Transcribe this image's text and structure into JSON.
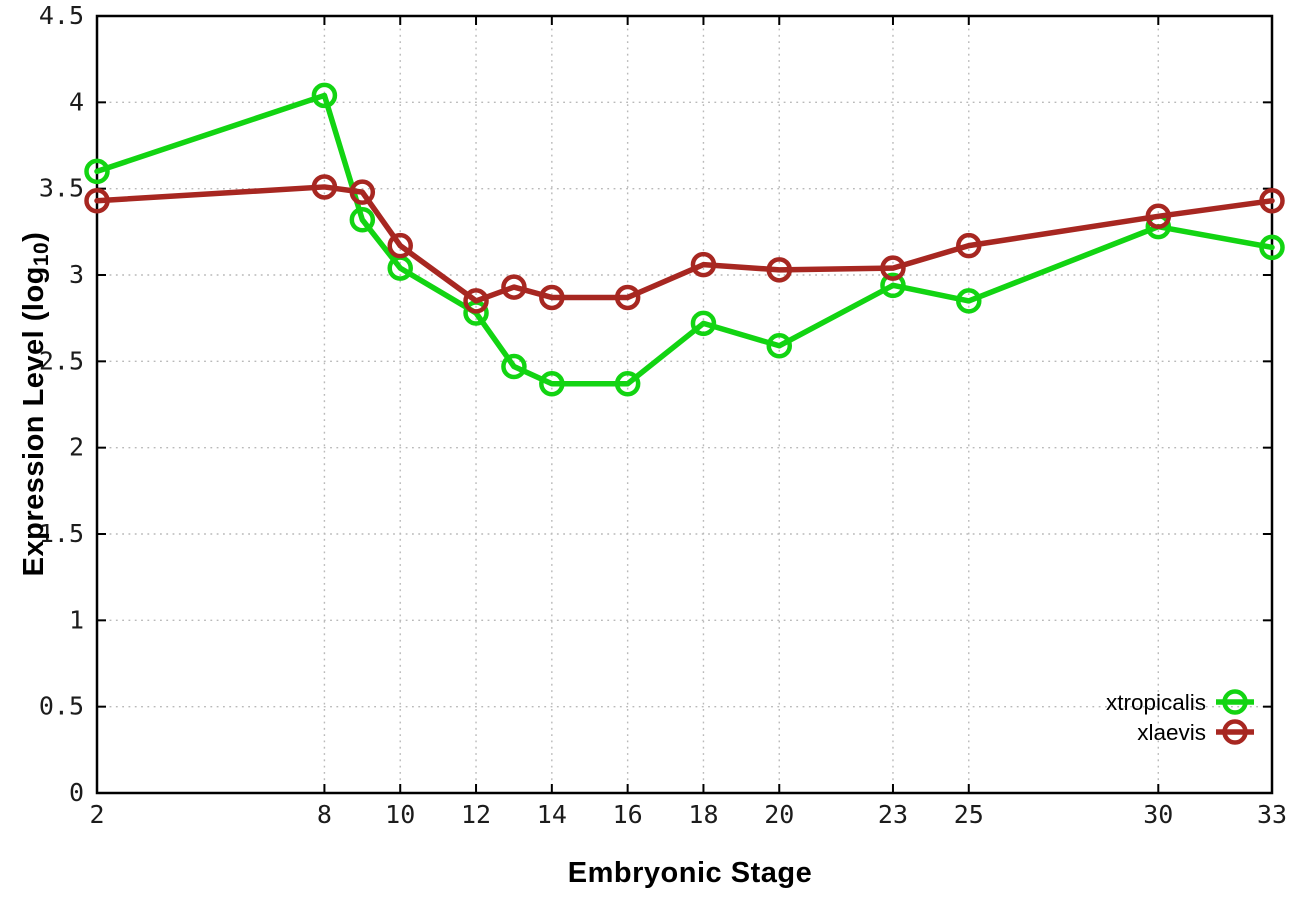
{
  "figure": {
    "background": "#ffffff",
    "x_axis_title": "Embryonic Stage",
    "y_axis_title": {
      "prefix": "Expression Level (log",
      "sub": "10",
      "suffix": ")"
    }
  },
  "chart_data": {
    "type": "line",
    "title": "",
    "xlabel": "Embryonic Stage",
    "ylabel": "Expression Level (log10)",
    "xlim": [
      2,
      33
    ],
    "ylim": [
      0,
      4.5
    ],
    "grid": true,
    "legend_position": "inside-lower-right",
    "x": [
      2,
      8,
      9,
      10,
      12,
      13,
      14,
      16,
      18,
      20,
      23,
      25,
      30,
      33
    ],
    "xtick_labels": [
      "2",
      "8",
      "10",
      "12",
      "14",
      "16",
      "18",
      "20",
      "23",
      "25",
      "30",
      "33"
    ],
    "xticks": [
      2,
      8,
      10,
      12,
      14,
      16,
      18,
      20,
      23,
      25,
      30,
      33
    ],
    "yticks": [
      0,
      0.5,
      1,
      1.5,
      2,
      2.5,
      3,
      3.5,
      4,
      4.5
    ],
    "series": [
      {
        "name": "xtropicalis",
        "color": "#12d412",
        "marker": "open-circle",
        "values": [
          3.6,
          4.04,
          3.32,
          3.04,
          2.78,
          2.47,
          2.37,
          2.37,
          2.72,
          2.59,
          2.94,
          2.85,
          3.28,
          3.16
        ]
      },
      {
        "name": "xlaevis",
        "color": "#a72721",
        "marker": "open-circle",
        "values": [
          3.43,
          3.51,
          3.48,
          3.17,
          2.85,
          2.93,
          2.87,
          2.87,
          3.06,
          3.03,
          3.04,
          3.17,
          3.34,
          3.43
        ]
      }
    ],
    "style": {
      "grid_color": "#b9b9b9",
      "axis_color": "#000000",
      "tick_label_color": "#1c1c1c",
      "line_width": 5.5,
      "marker_radius": 10.5,
      "marker_stroke": 4.5
    }
  }
}
